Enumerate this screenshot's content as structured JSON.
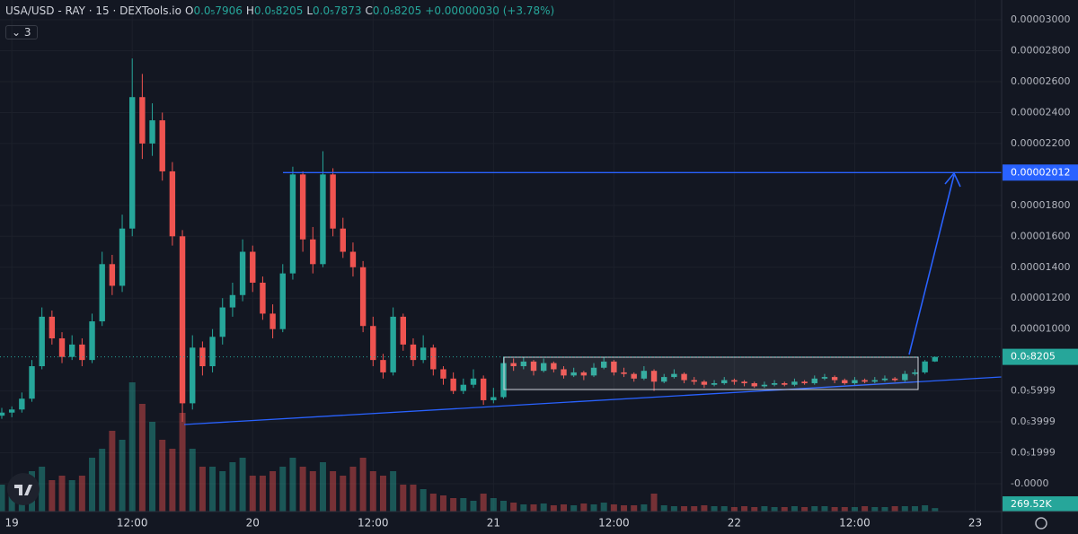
{
  "chart_data": {
    "type": "candlestick",
    "legend": {
      "title": "USA/USD - RAY · 15 · DEXTools.io",
      "keys": [
        "O",
        "H",
        "L",
        "C"
      ],
      "value_labels": [
        "0.0₅7906",
        "0.0₅8205",
        "0.0₅7873",
        "0.0₅8205"
      ],
      "change": "+0.00000030 (+3.78%)",
      "indicator_count": "3"
    },
    "categories": [
      null,
      "19",
      null,
      null,
      null,
      null,
      null,
      null,
      null,
      null,
      null,
      null,
      null,
      "12:00",
      null,
      null,
      null,
      null,
      null,
      null,
      null,
      null,
      null,
      null,
      null,
      "20",
      null,
      null,
      null,
      null,
      null,
      null,
      null,
      null,
      null,
      null,
      null,
      "12:00",
      null,
      null,
      null,
      null,
      null,
      null,
      null,
      null,
      null,
      null,
      null,
      "21",
      null,
      null,
      null,
      null,
      null,
      null,
      null,
      null,
      null,
      null,
      null,
      "12:00",
      null,
      null,
      null,
      null,
      null,
      null,
      null,
      null,
      null,
      null,
      null,
      "22",
      null,
      null,
      null,
      null,
      null,
      null,
      null,
      null,
      null,
      null,
      null,
      "12:00",
      null,
      null,
      null,
      null,
      null,
      null,
      null,
      null,
      null,
      null,
      null,
      "23"
    ],
    "candles": [
      [
        4.4e-06,
        4.9e-06,
        4.2e-06,
        4.6e-06
      ],
      [
        4.6e-06,
        5e-06,
        4.3e-06,
        4.8e-06
      ],
      [
        4.8e-06,
        5.9e-06,
        4.6e-06,
        5.5e-06
      ],
      [
        5.5e-06,
        8e-06,
        5.3e-06,
        7.6e-06
      ],
      [
        7.6e-06,
        1.14e-05,
        7.4e-06,
        1.08e-05
      ],
      [
        1.08e-05,
        1.12e-05,
        9e-06,
        9.4e-06
      ],
      [
        9.4e-06,
        9.8e-06,
        7.8e-06,
        8.2e-06
      ],
      [
        8.2e-06,
        9.6e-06,
        8e-06,
        9e-06
      ],
      [
        9e-06,
        9.4e-06,
        7.6e-06,
        8e-06
      ],
      [
        8e-06,
        1.1e-05,
        7.8e-06,
        1.05e-05
      ],
      [
        1.05e-05,
        1.5e-05,
        1.02e-05,
        1.42e-05
      ],
      [
        1.42e-05,
        1.48e-05,
        1.22e-05,
        1.28e-05
      ],
      [
        1.28e-05,
        1.74e-05,
        1.24e-05,
        1.65e-05
      ],
      [
        1.65e-05,
        2.75e-05,
        1.6e-05,
        2.5e-05
      ],
      [
        2.5e-05,
        2.65e-05,
        2.1e-05,
        2.2e-05
      ],
      [
        2.2e-05,
        2.46e-05,
        2.12e-05,
        2.35e-05
      ],
      [
        2.35e-05,
        2.4e-05,
        1.96e-05,
        2.02e-05
      ],
      [
        2.02e-05,
        2.08e-05,
        1.54e-05,
        1.6e-05
      ],
      [
        1.6e-05,
        1.64e-05,
        4e-06,
        5.2e-06
      ],
      [
        5.2e-06,
        9.6e-06,
        4.8e-06,
        8.8e-06
      ],
      [
        8.8e-06,
        9.2e-06,
        7e-06,
        7.6e-06
      ],
      [
        7.6e-06,
        1e-05,
        7.2e-06,
        9.5e-06
      ],
      [
        9.5e-06,
        1.2e-05,
        9e-06,
        1.14e-05
      ],
      [
        1.14e-05,
        1.3e-05,
        1.08e-05,
        1.22e-05
      ],
      [
        1.22e-05,
        1.58e-05,
        1.18e-05,
        1.5e-05
      ],
      [
        1.5e-05,
        1.54e-05,
        1.24e-05,
        1.3e-05
      ],
      [
        1.3e-05,
        1.34e-05,
        1.06e-05,
        1.1e-05
      ],
      [
        1.1e-05,
        1.16e-05,
        9.4e-06,
        1e-05
      ],
      [
        1e-05,
        1.42e-05,
        9.8e-06,
        1.36e-05
      ],
      [
        1.36e-05,
        2.05e-05,
        1.32e-05,
        2e-05
      ],
      [
        2e-05,
        2.02e-05,
        1.5e-05,
        1.58e-05
      ],
      [
        1.58e-05,
        1.66e-05,
        1.36e-05,
        1.42e-05
      ],
      [
        1.42e-05,
        2.15e-05,
        1.4e-05,
        2e-05
      ],
      [
        2e-05,
        2.04e-05,
        1.6e-05,
        1.65e-05
      ],
      [
        1.65e-05,
        1.72e-05,
        1.46e-05,
        1.5e-05
      ],
      [
        1.5e-05,
        1.56e-05,
        1.34e-05,
        1.4e-05
      ],
      [
        1.4e-05,
        1.44e-05,
        9.8e-06,
        1.02e-05
      ],
      [
        1.02e-05,
        1.08e-05,
        7.6e-06,
        8e-06
      ],
      [
        8e-06,
        8.4e-06,
        6.8e-06,
        7.2e-06
      ],
      [
        7.2e-06,
        1.14e-05,
        7e-06,
        1.08e-05
      ],
      [
        1.08e-05,
        1.1e-05,
        8.6e-06,
        9e-06
      ],
      [
        9e-06,
        9.4e-06,
        7.6e-06,
        8e-06
      ],
      [
        8e-06,
        9.6e-06,
        7.8e-06,
        8.8e-06
      ],
      [
        8.8e-06,
        9e-06,
        7e-06,
        7.4e-06
      ],
      [
        7.4e-06,
        7.6e-06,
        6.4e-06,
        6.8e-06
      ],
      [
        6.8e-06,
        7.2e-06,
        5.8e-06,
        6e-06
      ],
      [
        6e-06,
        6.8e-06,
        5.8e-06,
        6.4e-06
      ],
      [
        6.4e-06,
        7.4e-06,
        6.2e-06,
        6.8e-06
      ],
      [
        6.8e-06,
        7e-06,
        5.1e-06,
        5.4e-06
      ],
      [
        5.4e-06,
        6.2e-06,
        5.2e-06,
        5.6e-06
      ],
      [
        5.6e-06,
        8.2e-06,
        5.5e-06,
        7.8e-06
      ],
      [
        7.8e-06,
        8.1e-06,
        7.3e-06,
        7.6e-06
      ],
      [
        7.6e-06,
        8.2e-06,
        7.4e-06,
        7.9e-06
      ],
      [
        7.9e-06,
        8e-06,
        7e-06,
        7.3e-06
      ],
      [
        7.3e-06,
        8.1e-06,
        7.2e-06,
        7.8e-06
      ],
      [
        7.8e-06,
        7.9e-06,
        7.2e-06,
        7.4e-06
      ],
      [
        7.4e-06,
        7.6e-06,
        6.8e-06,
        7e-06
      ],
      [
        7e-06,
        7.5e-06,
        6.9e-06,
        7.2e-06
      ],
      [
        7.2e-06,
        7.3e-06,
        6.7e-06,
        7e-06
      ],
      [
        7e-06,
        7.8e-06,
        6.9e-06,
        7.5e-06
      ],
      [
        7.5e-06,
        8.2e-06,
        7.4e-06,
        7.9e-06
      ],
      [
        7.9e-06,
        8e-06,
        7e-06,
        7.2e-06
      ],
      [
        7.2e-06,
        7.5e-06,
        6.9e-06,
        7.1e-06
      ],
      [
        7.1e-06,
        7.2e-06,
        6.6e-06,
        6.8e-06
      ],
      [
        6.8e-06,
        7.6e-06,
        6.7e-06,
        7.3e-06
      ],
      [
        7.3e-06,
        7.4e-06,
        6e-06,
        6.6e-06
      ],
      [
        6.6e-06,
        7.1e-06,
        6.5e-06,
        6.9e-06
      ],
      [
        6.9e-06,
        7.4e-06,
        6.8e-06,
        7.1e-06
      ],
      [
        7.1e-06,
        7.2e-06,
        6.5e-06,
        6.7e-06
      ],
      [
        6.7e-06,
        6.9e-06,
        6.4e-06,
        6.6e-06
      ],
      [
        6.6e-06,
        6.7e-06,
        6.2e-06,
        6.4e-06
      ],
      [
        6.4e-06,
        6.7e-06,
        6.3e-06,
        6.5e-06
      ],
      [
        6.5e-06,
        6.9e-06,
        6.4e-06,
        6.7e-06
      ],
      [
        6.7e-06,
        6.8e-06,
        6.4e-06,
        6.6e-06
      ],
      [
        6.6e-06,
        6.7e-06,
        6.3e-06,
        6.5e-06
      ],
      [
        6.5e-06,
        6.6e-06,
        6.2e-06,
        6.3e-06
      ],
      [
        6.3e-06,
        6.6e-06,
        6.2e-06,
        6.4e-06
      ],
      [
        6.4e-06,
        6.7e-06,
        6.3e-06,
        6.5e-06
      ],
      [
        6.5e-06,
        6.6e-06,
        6.3e-06,
        6.4e-06
      ],
      [
        6.4e-06,
        6.8e-06,
        6.3e-06,
        6.6e-06
      ],
      [
        6.6e-06,
        6.7e-06,
        6.4e-06,
        6.5e-06
      ],
      [
        6.5e-06,
        7e-06,
        6.4e-06,
        6.8e-06
      ],
      [
        6.8e-06,
        7.1e-06,
        6.7e-06,
        6.9e-06
      ],
      [
        6.9e-06,
        7e-06,
        6.5e-06,
        6.7e-06
      ],
      [
        6.7e-06,
        6.8e-06,
        6.4e-06,
        6.5e-06
      ],
      [
        6.5e-06,
        6.9e-06,
        6.4e-06,
        6.7e-06
      ],
      [
        6.7e-06,
        6.8e-06,
        6.5e-06,
        6.6e-06
      ],
      [
        6.6e-06,
        6.9e-06,
        6.5e-06,
        6.7e-06
      ],
      [
        6.7e-06,
        7e-06,
        6.6e-06,
        6.8e-06
      ],
      [
        6.8e-06,
        6.9e-06,
        6.6e-06,
        6.7e-06
      ],
      [
        6.7e-06,
        7.3e-06,
        6.6e-06,
        7.1e-06
      ],
      [
        7.1e-06,
        7.4e-06,
        7e-06,
        7.2e-06
      ],
      [
        7.2e-06,
        8e-06,
        7.1e-06,
        7.906e-06
      ],
      [
        7.906e-06,
        8.205e-06,
        7.873e-06,
        8.205e-06
      ],
      null,
      null,
      null,
      null
    ],
    "volume": {
      "values": [
        2100000,
        1960000,
        2450000,
        3150000,
        3500000,
        2450000,
        2800000,
        2450000,
        2800000,
        4200000,
        4900000,
        6300000,
        5600000,
        10080000,
        8400000,
        7000000,
        5600000,
        4900000,
        7700000,
        4900000,
        3500000,
        3500000,
        3150000,
        3850000,
        4200000,
        2800000,
        2800000,
        3150000,
        3500000,
        4200000,
        3500000,
        3150000,
        3850000,
        3150000,
        2800000,
        3500000,
        4200000,
        3150000,
        2800000,
        3150000,
        2100000,
        2100000,
        1750000,
        1400000,
        1260000,
        1050000,
        1050000,
        840000,
        1400000,
        1050000,
        840000,
        700000,
        560000,
        560000,
        630000,
        490000,
        560000,
        490000,
        630000,
        560000,
        700000,
        560000,
        490000,
        490000,
        560000,
        1400000,
        490000,
        420000,
        420000,
        420000,
        490000,
        420000,
        420000,
        350000,
        420000,
        350000,
        420000,
        350000,
        350000,
        420000,
        350000,
        420000,
        420000,
        350000,
        350000,
        350000,
        420000,
        350000,
        350000,
        420000,
        420000,
        420000,
        490000,
        269520,
        null,
        null,
        null,
        null
      ],
      "last_label": "269.52K"
    },
    "ylim": [
      -1.8e-06,
      3.128e-05
    ],
    "yticks": [
      {
        "value": 3e-05,
        "label": "0.00003000"
      },
      {
        "value": 2.8e-05,
        "label": "0.00002800"
      },
      {
        "value": 2.6e-05,
        "label": "0.00002600"
      },
      {
        "value": 2.4e-05,
        "label": "0.00002400"
      },
      {
        "value": 2.2e-05,
        "label": "0.00002200"
      },
      {
        "value": 1.8e-05,
        "label": "0.00001800"
      },
      {
        "value": 1.6e-05,
        "label": "0.00001600"
      },
      {
        "value": 1.4e-05,
        "label": "0.00001400"
      },
      {
        "value": 1.2e-05,
        "label": "0.00001200"
      },
      {
        "value": 1e-05,
        "label": "0.00001000"
      },
      {
        "value": 6e-06,
        "label": "0.0₅5999"
      },
      {
        "value": 4e-06,
        "label": "0.0₅3999"
      },
      {
        "value": 2e-06,
        "label": "0.0₅1999"
      },
      {
        "value": 0,
        "label": "-0.0000"
      }
    ],
    "hline": {
      "value": 2.012e-05,
      "label": "0.00002012",
      "color": "#2962ff"
    },
    "last_price": {
      "value": 8.205e-06,
      "label": "0.0₅8205"
    },
    "up_color": "#26a69a",
    "down_color": "#ef5350",
    "grid": true
  }
}
